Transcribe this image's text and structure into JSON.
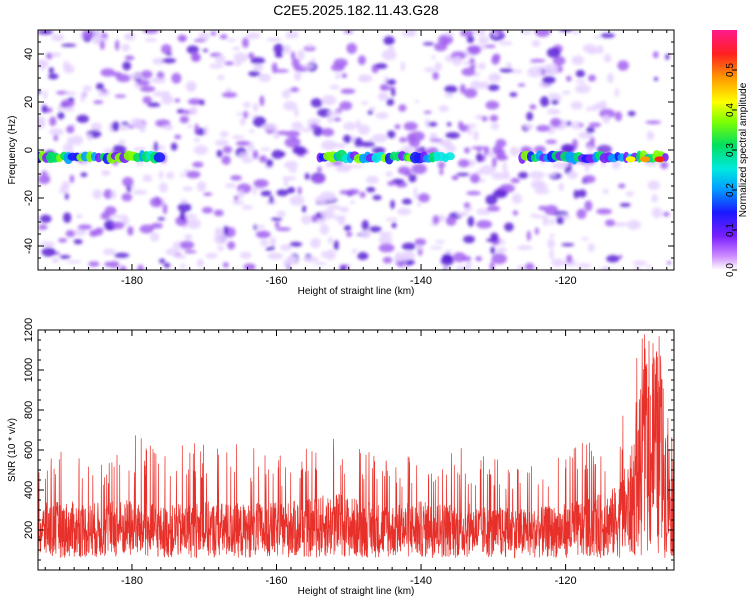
{
  "title": "C2E5.2025.182.11.43.G28",
  "colors": {
    "snr_line": "#e8302a",
    "spec_light": "#e6d2ff",
    "spec_mid": "#a260f0",
    "spec_dark": "#5a1fd6"
  },
  "chart_data": [
    {
      "type": "heatmap",
      "title": "C2E5.2025.182.11.43.G28",
      "xlabel": "Height of straight line (km)",
      "ylabel": "Frequency (Hz)",
      "xlim": [
        -193,
        -105
      ],
      "ylim": [
        -50,
        50
      ],
      "xticks": [
        -180,
        -160,
        -140,
        -120
      ],
      "yticks": [
        -40,
        -20,
        0,
        20,
        40
      ],
      "colorbar": {
        "label": "Normalized spectral amplitude",
        "range": [
          0.0,
          0.6
        ],
        "ticks": [
          0.0,
          0.1,
          0.2,
          0.3,
          0.4,
          0.5
        ],
        "colormap": "rainbow (white → purple → blue → cyan → green → yellow → orange → red → magenta)"
      },
      "features": [
        {
          "name": "main-band",
          "frequency_hz": -3,
          "segments": [
            [
              -193,
              -176
            ],
            [
              -154,
              -136
            ],
            [
              -126,
              -106
            ]
          ],
          "peak_amplitude": 0.55,
          "peak_x": -107
        }
      ]
    },
    {
      "type": "line",
      "xlabel": "Height of straight line (km)",
      "ylabel": "SNR (10 * v/v)",
      "xlim": [
        -193,
        -105
      ],
      "ylim": [
        0,
        1200
      ],
      "xticks": [
        -180,
        -160,
        -140,
        -120
      ],
      "yticks": [
        200,
        400,
        600,
        800,
        1000,
        1200
      ],
      "series": [
        {
          "color": "#e8302a",
          "x": [
            -193,
            -190,
            -185,
            -180,
            -176,
            -170,
            -165,
            -160,
            -155,
            -152,
            -150,
            -145,
            -140,
            -135,
            -130,
            -125,
            -120,
            -116,
            -113,
            -111,
            -110,
            -109,
            -108,
            -107,
            -106,
            -105
          ],
          "values_typical": [
            250,
            260,
            255,
            270,
            240,
            260,
            250,
            255,
            270,
            300,
            280,
            250,
            260,
            255,
            240,
            230,
            250,
            280,
            320,
            450,
            650,
            800,
            900,
            850,
            600,
            350
          ],
          "values_peak": [
            480,
            680,
            520,
            690,
            600,
            660,
            650,
            570,
            620,
            770,
            640,
            560,
            590,
            620,
            560,
            520,
            630,
            640,
            700,
            900,
            1120,
            1190,
            1200,
            1170,
            980,
            560
          ]
        }
      ]
    }
  ]
}
